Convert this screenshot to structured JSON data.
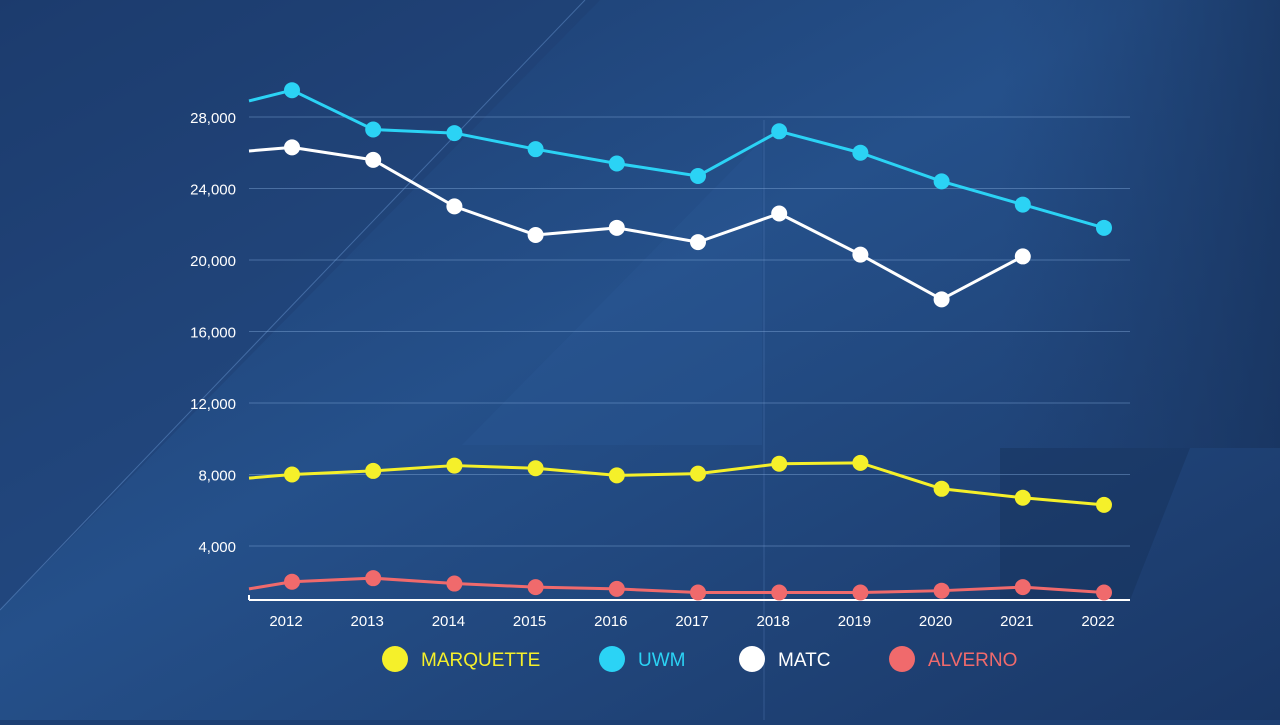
{
  "chart_data": {
    "type": "line",
    "title": "",
    "xlabel": "",
    "ylabel": "",
    "x": [
      "2012",
      "2013",
      "2014",
      "2015",
      "2016",
      "2017",
      "2018",
      "2019",
      "2020",
      "2021",
      "2022"
    ],
    "ylim": [
      0,
      28000
    ],
    "y_ticks": [
      "4,000",
      "8,000",
      "12,000",
      "16,000",
      "20,000",
      "24,000",
      "28,000"
    ],
    "y_tick_values": [
      4000,
      8000,
      12000,
      16000,
      20000,
      24000,
      28000
    ],
    "grid": true,
    "legend_position": "bottom",
    "series": [
      {
        "name": "MARQUETTE",
        "color": "#f5f02a",
        "start": 7800,
        "values": [
          8000,
          8200,
          8500,
          8350,
          7950,
          8050,
          8600,
          8650,
          7200,
          6700,
          6300
        ]
      },
      {
        "name": "UWM",
        "color": "#2bd3f5",
        "start": 28900,
        "values": [
          29500,
          27300,
          27100,
          26200,
          25400,
          24700,
          27200,
          26000,
          24400,
          23100,
          21800
        ]
      },
      {
        "name": "MATC",
        "color": "#ffffff",
        "start": 26100,
        "values": [
          26300,
          25600,
          23000,
          21400,
          21800,
          21000,
          22600,
          20300,
          17800,
          20200,
          null
        ]
      },
      {
        "name": "ALVERNO",
        "color": "#f06a6c",
        "start": 1600,
        "values": [
          2000,
          2200,
          1900,
          1700,
          1600,
          1400,
          1400,
          1400,
          1500,
          1700,
          1400
        ]
      }
    ]
  }
}
